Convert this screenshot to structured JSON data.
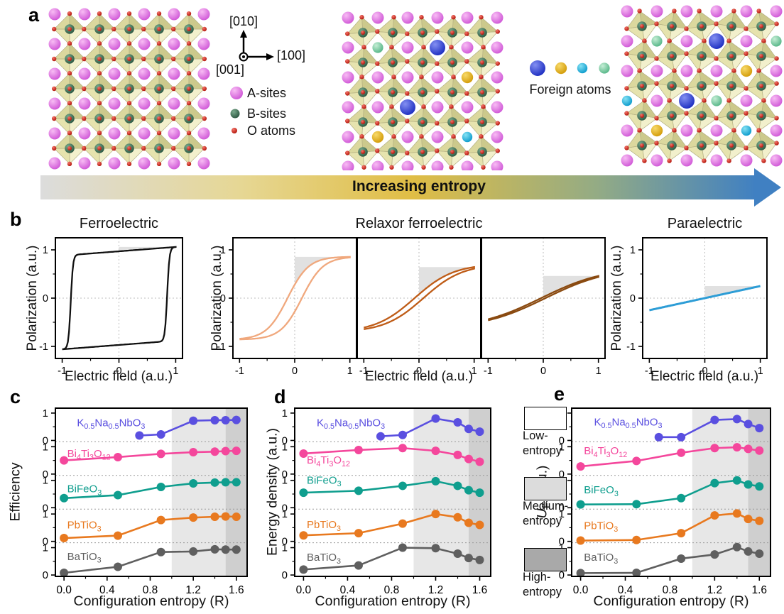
{
  "figure": {
    "panels": {
      "a": "a",
      "b": "b",
      "c": "c",
      "d": "d",
      "e": "e"
    }
  },
  "panel_a": {
    "crystal_axes": {
      "up": "[010]",
      "right": "[100]",
      "out": "[001]"
    },
    "site_legend": [
      {
        "name": "A-sites",
        "color_key": "asite"
      },
      {
        "name": "B-sites",
        "color_key": "bsite"
      },
      {
        "name": "O atoms",
        "color_key": "oxygen"
      }
    ],
    "foreign_atoms": {
      "label": "Foreign atoms",
      "order": [
        "blue",
        "gold",
        "cyan",
        "mint"
      ]
    },
    "entropy_arrow": {
      "label": "Increasing entropy",
      "gradient": [
        "#dcdcdc",
        "#e6d794",
        "#e0bd45",
        "#93ab85",
        "#4080c2"
      ]
    },
    "colors": {
      "asite": [
        "#f8bcf4",
        "#cf56d6"
      ],
      "bsite": [
        "#79a98c",
        "#2b5640"
      ],
      "oxygen": [
        "#f4756a",
        "#b01208"
      ],
      "blue": [
        "#8490f2",
        "#1b2cc0"
      ],
      "gold": [
        "#f8da6a",
        "#d29a06"
      ],
      "cyan": [
        "#86e2f4",
        "#0a9acc"
      ],
      "mint": [
        "#c6eed6",
        "#54b586"
      ],
      "octahedron": [
        "#f2f0cc",
        "#e6e3ae",
        "#dbd89e",
        "#ccc98c"
      ],
      "octahedron_edge": "#b5b184"
    },
    "lattices": [
      {
        "tilt": 0,
        "foreign": []
      },
      {
        "tilt": 4,
        "foreign": [
          {
            "c": 1,
            "r": 1,
            "k": "mint"
          },
          {
            "c": 3,
            "r": 1,
            "k": "blue"
          },
          {
            "c": 4,
            "r": 2,
            "k": "gold"
          },
          {
            "c": 2,
            "r": 3,
            "k": "blue"
          },
          {
            "c": 1,
            "r": 4,
            "k": "gold"
          },
          {
            "c": 4,
            "r": 4,
            "k": "cyan"
          }
        ]
      },
      {
        "tilt": 9,
        "foreign": [
          {
            "c": 1,
            "r": 1,
            "k": "mint"
          },
          {
            "c": 3,
            "r": 1,
            "k": "blue"
          },
          {
            "c": 5,
            "r": 1,
            "k": "mint"
          },
          {
            "c": 4,
            "r": 2,
            "k": "gold"
          },
          {
            "c": 0,
            "r": 3,
            "k": "cyan"
          },
          {
            "c": 2,
            "r": 3,
            "k": "blue"
          },
          {
            "c": 3,
            "r": 3,
            "k": "mint"
          },
          {
            "c": 1,
            "r": 4,
            "k": "gold"
          },
          {
            "c": 4,
            "r": 4,
            "k": "cyan"
          }
        ]
      }
    ]
  },
  "panel_b": {
    "titles": [
      "Ferroelectric",
      "Relaxor ferroelectric",
      "Paraelectric"
    ],
    "xlabel": "Electric field (a.u.)",
    "ylabel": "Polarization (a.u.)",
    "ticks": [
      -1,
      0,
      1
    ],
    "shade_color": "#dedede",
    "loops": [
      {
        "name": "ferroelectric",
        "color": "#111111",
        "Ps": 0.97,
        "Ec": 0.85,
        "k": 25,
        "slope": 0.09
      },
      {
        "name": "relaxor-low-entropy",
        "color": "#f0a87d",
        "Ps": 0.86,
        "Ec": 0.13,
        "k": 2.6,
        "slope": 0
      },
      {
        "name": "relaxor-mid-entropy",
        "color": "#bf5c17",
        "Ps": 0.71,
        "Ec": 0.08,
        "k": 1.4,
        "slope": 0
      },
      {
        "name": "relaxor-high-entropy",
        "color": "#8a4a10",
        "Ps": 0.65,
        "Ec": 0.04,
        "k": 0.85,
        "slope": 0
      },
      {
        "name": "paraelectric",
        "color": "#2d9dd6",
        "Ps": 0,
        "Ec": 0,
        "k": 0,
        "slope": 0.25
      }
    ]
  },
  "entropy_legend": [
    {
      "color": "#ffffff",
      "line1": "Low-",
      "line2": "entropy"
    },
    {
      "color": "#dcdcdc",
      "line1": "Medium-",
      "line2": "entropy"
    },
    {
      "color": "#a9a9a9",
      "line1": "High-",
      "line2": "entropy"
    }
  ],
  "chart_data": [
    {
      "type": "line",
      "panel": "c",
      "xlabel": "Configuration entropy (R)",
      "ylabel": "Efficiency",
      "x_ticks": [
        "0.0",
        "0.4",
        "0.8",
        "1.2",
        "1.6"
      ],
      "x_tick_values": [
        0,
        0.4,
        0.8,
        1.2,
        1.6
      ],
      "x_minor_ticks": [
        0.2,
        0.6,
        1.0,
        1.4
      ],
      "xlim": [
        -0.08,
        1.7
      ],
      "strip_ylim": [
        -0.05,
        1.18
      ],
      "y_ticks_per_strip": [
        0,
        1
      ],
      "bands": {
        "medium": [
          1.0,
          1.5
        ],
        "high": [
          1.5,
          1.7
        ],
        "medium_color": "#e7e7e7",
        "high_color": "#cfcfcf"
      },
      "series": [
        {
          "name": "K_{0.5}Na_{0.5}NbO_{3}",
          "color": "#5a4fe0",
          "x": [
            0.7,
            0.9,
            1.2,
            1.4,
            1.5,
            1.6
          ],
          "y": [
            0.18,
            0.22,
            0.72,
            0.74,
            0.74,
            0.75
          ],
          "label_at": [
            0.12,
            0.52
          ]
        },
        {
          "name": "Bi_{4}Ti_{3}O_{12}",
          "color": "#f4479c",
          "x": [
            0,
            0.5,
            0.9,
            1.2,
            1.4,
            1.5,
            1.6
          ],
          "y": [
            0.5,
            0.62,
            0.74,
            0.8,
            0.82,
            0.84,
            0.85
          ],
          "label_at": [
            0.03,
            0.62
          ]
        },
        {
          "name": "BiFeO_{3}",
          "color": "#0f9e8e",
          "x": [
            0,
            0.5,
            0.9,
            1.2,
            1.4,
            1.5,
            1.6
          ],
          "y": [
            0.35,
            0.46,
            0.76,
            0.89,
            0.92,
            0.93,
            0.93
          ],
          "label_at": [
            0.03,
            0.56
          ]
        },
        {
          "name": "PbTiO_{3}",
          "color": "#e8791f",
          "x": [
            0,
            0.5,
            0.9,
            1.2,
            1.4,
            1.5,
            1.6
          ],
          "y": [
            0.12,
            0.21,
            0.78,
            0.87,
            0.9,
            0.91,
            0.9
          ],
          "label_at": [
            0.03,
            0.47
          ]
        },
        {
          "name": "BaTiO_{3}",
          "color": "#5f5f5f",
          "x": [
            0,
            0.5,
            0.9,
            1.2,
            1.4,
            1.5,
            1.6
          ],
          "y": [
            0.08,
            0.3,
            0.84,
            0.86,
            0.94,
            0.93,
            0.93
          ],
          "label_at": [
            0.03,
            0.55
          ]
        }
      ]
    },
    {
      "type": "line",
      "panel": "d",
      "xlabel": "Configuration entropy (R)",
      "ylabel": "Energy density (a.u.)",
      "x_ticks": [
        "0.0",
        "0.4",
        "0.8",
        "1.2",
        "1.6"
      ],
      "x_tick_values": [
        0,
        0.4,
        0.8,
        1.2,
        1.6
      ],
      "x_minor_ticks": [
        0.2,
        0.6,
        1.0,
        1.4
      ],
      "xlim": [
        -0.08,
        1.7
      ],
      "strip_ylim": [
        -0.05,
        1.18
      ],
      "y_ticks_per_strip": [
        0,
        1
      ],
      "bands": {
        "medium": [
          1.0,
          1.5
        ],
        "high": [
          1.5,
          1.7
        ],
        "medium_color": "#e7e7e7",
        "high_color": "#cfcfcf"
      },
      "series": [
        {
          "name": "K_{0.5}Na_{0.5}NbO_{3}",
          "color": "#5a4fe0",
          "x": [
            0.7,
            0.9,
            1.2,
            1.4,
            1.5,
            1.6
          ],
          "y": [
            0.15,
            0.2,
            0.8,
            0.66,
            0.42,
            0.32
          ],
          "label_at": [
            0.12,
            0.52
          ]
        },
        {
          "name": "Bi_{4}Ti_{3}O_{12}",
          "color": "#f4479c",
          "x": [
            0,
            0.5,
            0.9,
            1.2,
            1.4,
            1.5,
            1.6
          ],
          "y": [
            0.75,
            0.88,
            0.95,
            0.85,
            0.7,
            0.55,
            0.45
          ],
          "label_at": [
            0.03,
            0.38
          ]
        },
        {
          "name": "BiFeO_{3}",
          "color": "#0f9e8e",
          "x": [
            0,
            0.5,
            0.9,
            1.2,
            1.4,
            1.5,
            1.6
          ],
          "y": [
            0.55,
            0.62,
            0.8,
            0.97,
            0.8,
            0.64,
            0.55
          ],
          "label_at": [
            0.03,
            0.88
          ]
        },
        {
          "name": "PbTiO_{3}",
          "color": "#e8791f",
          "x": [
            0,
            0.5,
            0.9,
            1.2,
            1.4,
            1.5,
            1.6
          ],
          "y": [
            0.22,
            0.3,
            0.65,
            1.0,
            0.88,
            0.68,
            0.6
          ],
          "label_at": [
            0.03,
            0.48
          ]
        },
        {
          "name": "BaTiO_{3}",
          "color": "#5f5f5f",
          "x": [
            0,
            0.5,
            0.9,
            1.2,
            1.4,
            1.5,
            1.6
          ],
          "y": [
            0.2,
            0.35,
            1.0,
            0.98,
            0.78,
            0.62,
            0.55
          ],
          "label_at": [
            0.03,
            0.52
          ]
        }
      ]
    },
    {
      "type": "line",
      "panel": "e",
      "xlabel": "Configuration entropy (R)",
      "ylabel": "*U*_{F} (a.u.)",
      "x_ticks": [
        "0.0",
        "0.4",
        "0.8",
        "1.2",
        "1.6"
      ],
      "x_tick_values": [
        0,
        0.4,
        0.8,
        1.2,
        1.6
      ],
      "x_minor_ticks": [
        0.2,
        0.6,
        1.0,
        1.4
      ],
      "xlim": [
        -0.08,
        1.7
      ],
      "strip_ylim": [
        -0.05,
        1.18
      ],
      "y_ticks_per_strip": [
        0,
        1
      ],
      "bands": {
        "medium": [
          1.0,
          1.5
        ],
        "high": [
          1.5,
          1.7
        ],
        "medium_color": "#e7e7e7",
        "high_color": "#cfcfcf"
      },
      "series": [
        {
          "name": "K_{0.5}Na_{0.5}NbO_{3}",
          "color": "#5a4fe0",
          "x": [
            0.7,
            0.9,
            1.2,
            1.4,
            1.5,
            1.6
          ],
          "y": [
            0.12,
            0.12,
            0.75,
            0.78,
            0.6,
            0.45
          ],
          "label_at": [
            0.12,
            0.55
          ]
        },
        {
          "name": "Bi_{4}Ti_{3}O_{12}",
          "color": "#f4479c",
          "x": [
            0,
            0.5,
            0.9,
            1.2,
            1.4,
            1.5,
            1.6
          ],
          "y": [
            0.28,
            0.48,
            0.78,
            0.95,
            0.98,
            0.92,
            0.86
          ],
          "label_at": [
            0.03,
            0.72
          ]
        },
        {
          "name": "BiFeO_{3}",
          "color": "#0f9e8e",
          "x": [
            0,
            0.5,
            0.9,
            1.2,
            1.4,
            1.5,
            1.6
          ],
          "y": [
            0.12,
            0.13,
            0.35,
            0.9,
            1.0,
            0.85,
            0.78
          ],
          "label_at": [
            0.03,
            0.52
          ]
        },
        {
          "name": "PbTiO_{3}",
          "color": "#e8791f",
          "x": [
            0,
            0.5,
            0.9,
            1.2,
            1.4,
            1.5,
            1.6
          ],
          "y": [
            0.03,
            0.05,
            0.3,
            0.95,
            1.02,
            0.82,
            0.75
          ],
          "label_at": [
            0.03,
            0.45
          ]
        },
        {
          "name": "BaTiO_{3}",
          "color": "#5f5f5f",
          "x": [
            0,
            0.5,
            0.9,
            1.2,
            1.4,
            1.5,
            1.6
          ],
          "y": [
            0.07,
            0.08,
            0.6,
            0.75,
            1.02,
            0.86,
            0.78
          ],
          "label_at": [
            0.03,
            0.52
          ]
        }
      ]
    }
  ]
}
